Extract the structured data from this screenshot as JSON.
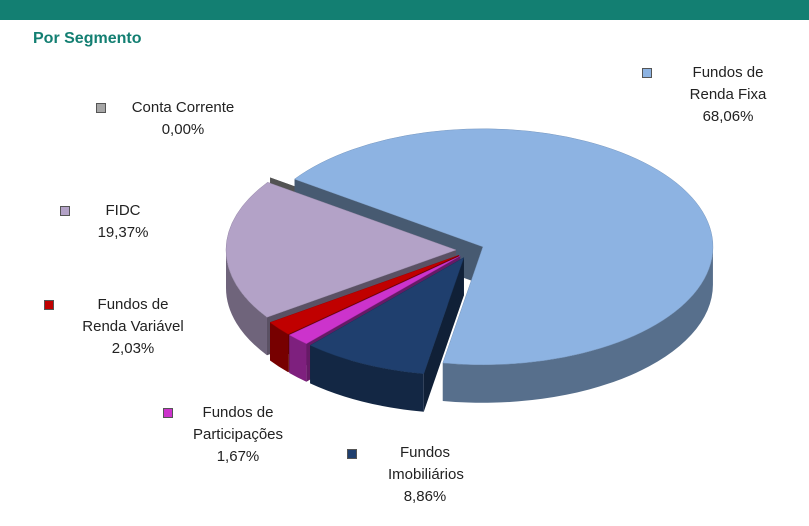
{
  "chart_data": {
    "type": "pie",
    "title": "Por Segmento",
    "categories": [
      "Fundos de Renda Fixa",
      "Fundos Imobiliários",
      "Fundos de Participações",
      "Fundos de Renda Variável",
      "FIDC",
      "Conta Corrente"
    ],
    "values": [
      68.06,
      8.86,
      1.67,
      2.03,
      19.37,
      0.0
    ],
    "value_labels": [
      "68,06%",
      "8,86%",
      "1,67%",
      "2,03%",
      "19,37%",
      "0,00%"
    ],
    "colors": [
      "#8db3e2",
      "#1f3f6e",
      "#cc33cc",
      "#c00000",
      "#b3a2c7",
      "#a6a6a6"
    ]
  }
}
